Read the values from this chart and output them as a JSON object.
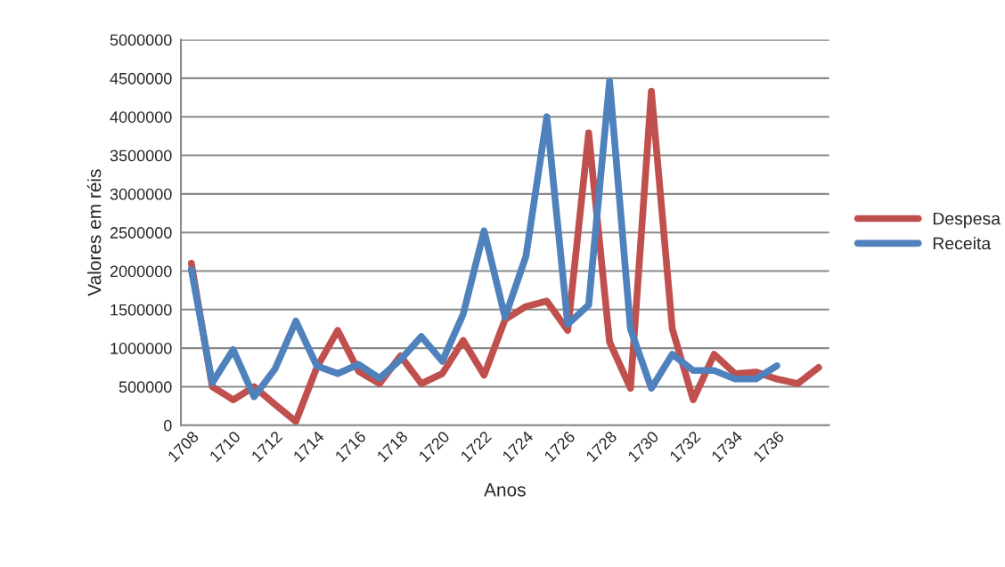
{
  "chart_data": {
    "type": "line",
    "xlabel": "Anos",
    "ylabel": "Valores em réis",
    "categories": [
      "1708",
      null,
      "1710",
      null,
      "1712",
      null,
      "1714",
      null,
      "1716",
      null,
      "1718",
      null,
      "1720",
      null,
      "1722",
      null,
      "1724",
      null,
      "1726",
      null,
      "1728",
      null,
      "1730",
      null,
      "1732",
      null,
      "1734",
      null,
      "1736",
      null,
      null
    ],
    "series": [
      {
        "name": "Despesa",
        "color": "#c0504d",
        "values": [
          2100000,
          500000,
          330000,
          500000,
          270000,
          50000,
          750000,
          1230000,
          700000,
          540000,
          900000,
          540000,
          670000,
          1100000,
          650000,
          1370000,
          1540000,
          1610000,
          1230000,
          3790000,
          1080000,
          480000,
          4330000,
          1250000,
          330000,
          920000,
          670000,
          690000,
          600000,
          540000,
          750000
        ]
      },
      {
        "name": "Receita",
        "color": "#4f81bd",
        "values": [
          2020000,
          550000,
          980000,
          370000,
          730000,
          1350000,
          770000,
          670000,
          790000,
          610000,
          850000,
          1150000,
          830000,
          1440000,
          2520000,
          1400000,
          2190000,
          4000000,
          1310000,
          1560000,
          4460000,
          1250000,
          480000,
          920000,
          710000,
          710000,
          600000,
          600000,
          770000,
          null,
          null
        ]
      }
    ],
    "ylim": [
      0,
      5000000
    ],
    "yticks": [
      0,
      500000,
      1000000,
      1500000,
      2000000,
      2500000,
      3000000,
      3500000,
      4000000,
      4500000,
      5000000
    ],
    "grid": "y",
    "legend": "right",
    "marker": "none",
    "line_style": "solid"
  }
}
